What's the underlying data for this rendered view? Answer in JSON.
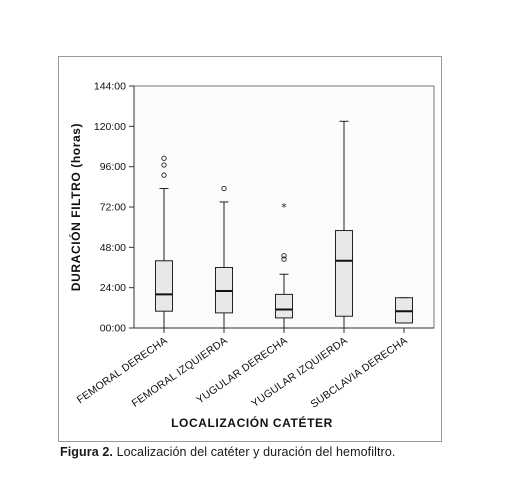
{
  "chart_data": {
    "type": "box",
    "xlabel": "LOCALIZACIÓN CATÉTER",
    "ylabel": "DURACIÓN FILTRO (horas)",
    "ylim": [
      0,
      144
    ],
    "yticks": [
      0,
      24,
      48,
      72,
      96,
      120,
      144
    ],
    "ytick_labels": [
      "00:00",
      "24:00",
      "48:00",
      "72:00",
      "96:00",
      "120:00",
      "144:00"
    ],
    "grid": false,
    "categories": [
      "FEMORAL DERECHA",
      "FEMORAL IZQUIERDA",
      "YUGULAR DERECHA",
      "YUGULAR IZQUIERDA",
      "SUBCLAVIA DERECHA"
    ],
    "boxes": [
      {
        "whisker_low": 0,
        "q1": 10,
        "median": 20,
        "q3": 40,
        "whisker_high": 83,
        "outliers": [
          91,
          97,
          101
        ],
        "extremes": []
      },
      {
        "whisker_low": 0,
        "q1": 9,
        "median": 22,
        "q3": 36,
        "whisker_high": 75,
        "outliers": [
          83
        ],
        "extremes": []
      },
      {
        "whisker_low": 0,
        "q1": 6,
        "median": 11,
        "q3": 20,
        "whisker_high": 32,
        "outliers": [
          41,
          43
        ],
        "extremes": [
          72
        ]
      },
      {
        "whisker_low": 0,
        "q1": 7,
        "median": 40,
        "q3": 58,
        "whisker_high": 123,
        "outliers": [],
        "extremes": []
      },
      {
        "whisker_low": 3,
        "q1": 3,
        "median": 10,
        "q3": 18,
        "whisker_high": 18,
        "outliers": [],
        "extremes": []
      }
    ],
    "box_fill": "#e8e8e8"
  },
  "caption": {
    "label": "Figura 2.",
    "text": "Localización del catéter y duración del hemofiltro."
  }
}
